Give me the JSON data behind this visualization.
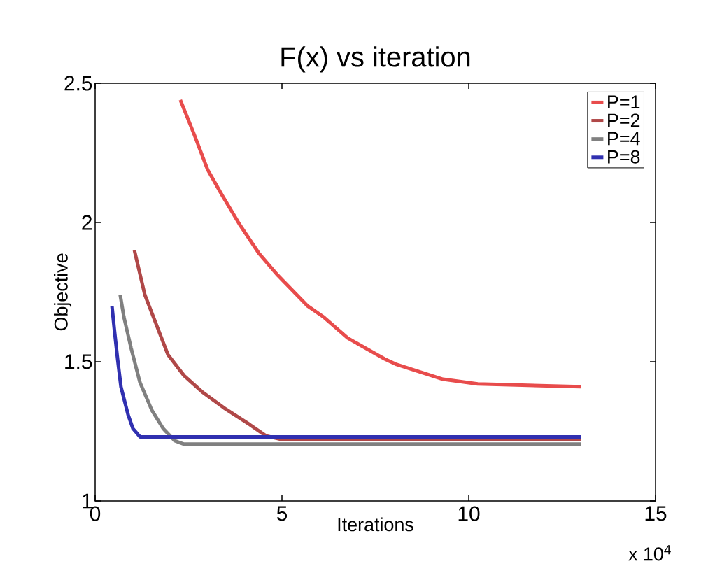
{
  "chart_data": {
    "type": "line",
    "title": "F(x) vs iteration",
    "xlabel": "Iterations",
    "ylabel": "Objective",
    "annotations": [
      "x 10$^{4}$"
    ],
    "xlim": [
      0,
      15
    ],
    "xticks": [
      0,
      5,
      10,
      15
    ],
    "ylim": [
      1,
      2.5
    ],
    "yticks": [
      1,
      1.5,
      2,
      2.5
    ],
    "legend": "top right",
    "grid": false,
    "marker": "none",
    "line_style": "solid",
    "series": [
      {
        "name": "P=1",
        "color": "#e84c4c",
        "x": [
          2.28,
          2.64,
          3.01,
          3.39,
          3.88,
          4.38,
          4.89,
          5.69,
          6.12,
          6.76,
          7.75,
          8.07,
          9.31,
          10.24,
          13.0
        ],
        "values": [
          2.44,
          2.32,
          2.19,
          2.1,
          1.99,
          1.89,
          1.81,
          1.7,
          1.66,
          1.585,
          1.51,
          1.49,
          1.437,
          1.42,
          1.41
        ]
      },
      {
        "name": "P=2",
        "color": "#b04848",
        "x": [
          1.05,
          1.33,
          1.63,
          1.95,
          2.38,
          2.88,
          3.45,
          4.14,
          4.57,
          5.0,
          13.0
        ],
        "values": [
          1.9,
          1.74,
          1.636,
          1.525,
          1.45,
          1.39,
          1.334,
          1.274,
          1.234,
          1.22,
          1.22
        ]
      },
      {
        "name": "P=4",
        "color": "#808080",
        "x": [
          0.67,
          0.77,
          0.96,
          1.2,
          1.52,
          1.82,
          2.13,
          2.38,
          13.0
        ],
        "values": [
          1.74,
          1.66,
          1.55,
          1.425,
          1.325,
          1.26,
          1.216,
          1.204,
          1.204
        ]
      },
      {
        "name": "P=8",
        "color": "#3030b0",
        "x": [
          0.45,
          0.51,
          0.6,
          0.69,
          0.88,
          1.01,
          1.2,
          13.0
        ],
        "values": [
          1.7,
          1.62,
          1.51,
          1.41,
          1.31,
          1.26,
          1.23,
          1.23
        ]
      }
    ]
  }
}
